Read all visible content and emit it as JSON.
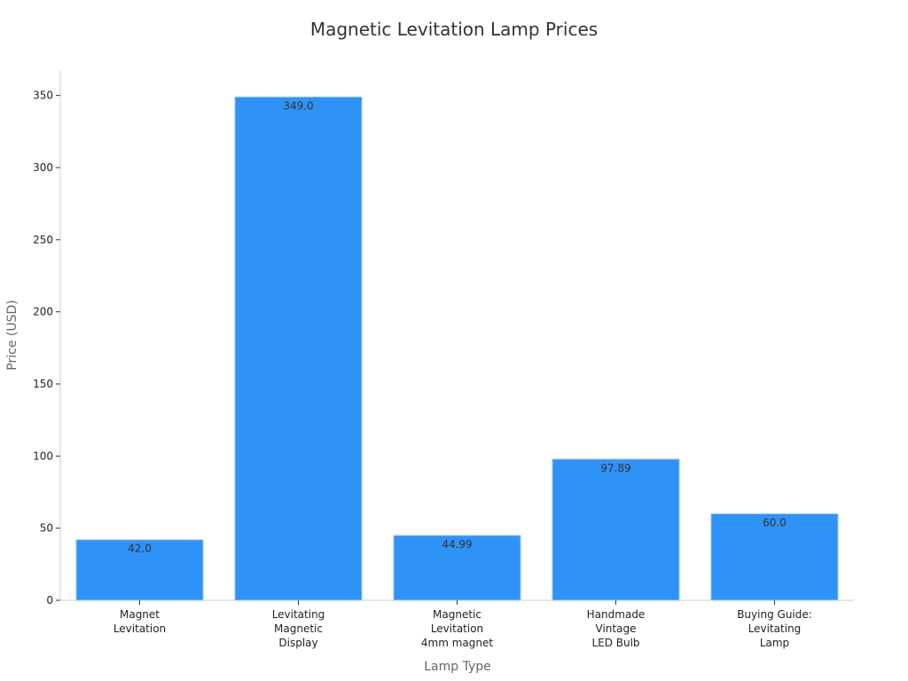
{
  "chart_data": {
    "type": "bar",
    "title": "Magnetic Levitation Lamp Prices",
    "xlabel": "Lamp Type",
    "ylabel": "Price (USD)",
    "categories": [
      [
        "Magnet",
        "Levitation"
      ],
      [
        "Levitating",
        "Magnetic",
        "Display"
      ],
      [
        "Magnetic",
        "Levitation",
        "4mm magnet"
      ],
      [
        "Handmade",
        "Vintage",
        "LED Bulb"
      ],
      [
        "Buying Guide:",
        "Levitating",
        "Lamp"
      ]
    ],
    "values": [
      42.0,
      349.0,
      44.99,
      97.89,
      60.0
    ],
    "data_labels": [
      "42.0",
      "349.0",
      "44.99",
      "97.89",
      "60.0"
    ],
    "ylim": [
      0,
      367
    ],
    "yticks": [
      0,
      50,
      100,
      150,
      200,
      250,
      300,
      350
    ],
    "grid": false,
    "bar_color": "#2f92f7",
    "bar_edge_color": "#a9cdf7"
  }
}
